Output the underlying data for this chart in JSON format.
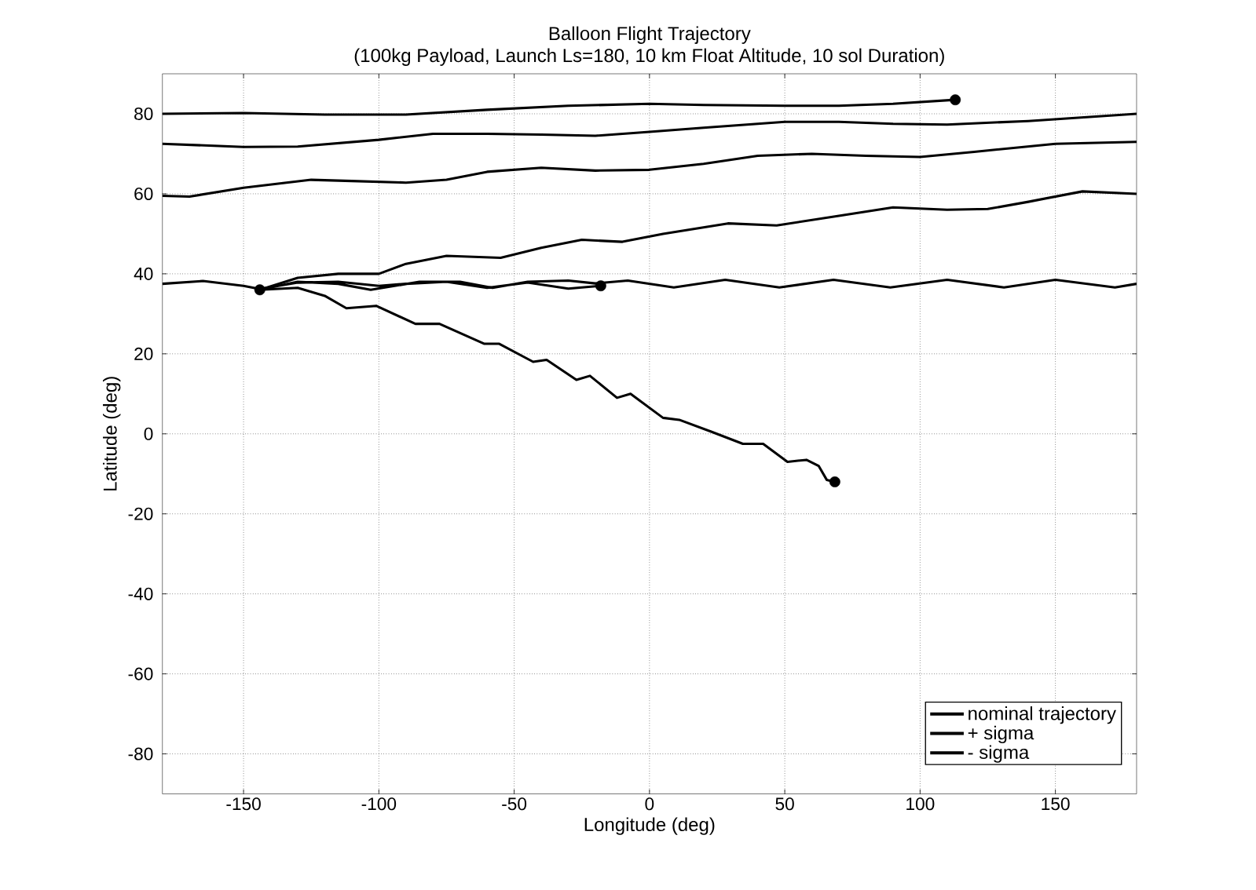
{
  "chart_data": {
    "type": "line",
    "title": "Balloon Flight Trajectory",
    "subtitle": "(100kg Payload, Launch Ls=180, 10 km Float Altitude, 10 sol Duration)",
    "xlabel": "Longitude (deg)",
    "ylabel": "Latitude (deg)",
    "xlim": [
      -180,
      180
    ],
    "xticks": [
      -150,
      -100,
      -50,
      0,
      50,
      100,
      150
    ],
    "ylim": [
      -90,
      90
    ],
    "yticks": [
      -80,
      -60,
      -40,
      -20,
      0,
      20,
      40,
      60,
      80
    ],
    "grid": true,
    "legend": "bottom right",
    "series": [
      {
        "name": "nominal trajectory",
        "color": "#000000",
        "x": [
          -144,
          -130,
          -115,
          -103,
          -85,
          -70,
          -58,
          -45,
          -30,
          -20,
          -8,
          9,
          28,
          48,
          68,
          89,
          110,
          131,
          150,
          172,
          180,
          null,
          -180,
          -165,
          -150,
          -144,
          -130,
          -115,
          -100,
          -90,
          -75,
          -60,
          -45,
          -30,
          -18
        ],
        "values": [
          36,
          38,
          37.5,
          36,
          38,
          38,
          36.5,
          38,
          38.3,
          37.6,
          38.3,
          36.6,
          38.5,
          36.6,
          38.5,
          36.6,
          38.5,
          36.6,
          38.5,
          36.6,
          37.5,
          null,
          37.5,
          38.2,
          37,
          36.2,
          37.8,
          38,
          37,
          37.5,
          38,
          36.5,
          37.8,
          36.3,
          37
        ]
      },
      {
        "name": "+ sigma",
        "color": "#000000",
        "x": [
          -144,
          -130,
          -115,
          -100,
          -90,
          -75,
          -55,
          -40,
          -25,
          -10,
          5,
          29,
          47,
          70,
          90,
          110,
          125,
          140,
          160,
          180,
          null,
          -180,
          -170,
          -150,
          -125,
          -110,
          -90,
          -75,
          -60,
          -40,
          -20,
          0,
          20,
          40,
          60,
          80,
          100,
          120,
          150,
          180,
          null,
          -180,
          -150,
          -130,
          -100,
          -80,
          -60,
          -40,
          -20,
          0,
          20,
          50,
          70,
          90,
          110,
          140,
          180,
          null,
          -180,
          -150,
          -120,
          -90,
          -60,
          -30,
          0,
          20,
          50,
          70,
          90,
          113
        ],
        "values": [
          36,
          39,
          40,
          40,
          42.5,
          44.5,
          44,
          46.5,
          48.5,
          48,
          50,
          52.6,
          52.1,
          54.5,
          56.6,
          56,
          56.2,
          58,
          60.6,
          60,
          null,
          59.5,
          59.3,
          61.5,
          63.5,
          63.2,
          62.8,
          63.5,
          65.5,
          66.5,
          65.8,
          66,
          67.5,
          69.5,
          70,
          69.5,
          69.2,
          70.5,
          72.5,
          73,
          null,
          72.5,
          71.7,
          71.8,
          73.5,
          75,
          75,
          74.8,
          74.5,
          75.5,
          76.5,
          78,
          78,
          77.5,
          77.3,
          78.2,
          80,
          null,
          80,
          80.2,
          79.8,
          79.8,
          81,
          82,
          82.5,
          82.2,
          82,
          82,
          82.5,
          83.5
        ]
      },
      {
        "name": "- sigma",
        "color": "#000000",
        "x": [
          -144,
          -130,
          -120,
          -112,
          -101,
          -86.5,
          -77.6,
          -61,
          -55.5,
          -43,
          -38,
          -27,
          -22,
          -12,
          -7,
          5,
          11,
          23,
          34.5,
          42,
          51,
          58,
          62.5,
          65.5,
          68.5
        ],
        "values": [
          36,
          36.5,
          34.5,
          31.4,
          32,
          27.5,
          27.5,
          22.5,
          22.5,
          18,
          18.5,
          13.5,
          14.5,
          9,
          10,
          4,
          3.5,
          0.5,
          -2.5,
          -2.5,
          -7,
          -6.5,
          -8,
          -11.5,
          -12
        ]
      },
      {
        "type": "scatter",
        "color": "#000000",
        "x": [
          -144,
          -18,
          113,
          68.5
        ],
        "values": [
          36,
          37,
          83.5,
          -12
        ]
      }
    ]
  }
}
